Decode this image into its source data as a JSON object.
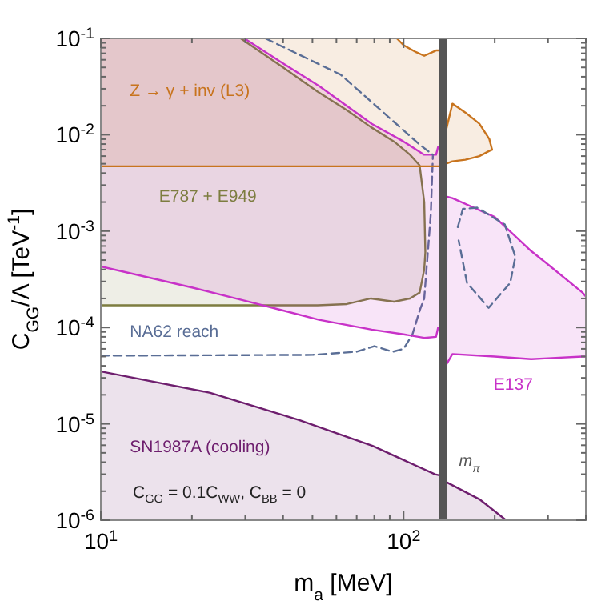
{
  "chart_data": {
    "type": "line",
    "xlabel": "m$_{a}$ [MeV]",
    "ylabel": "C$_{GG}$/Λ [TeV$^{-1}$]",
    "log": "xy",
    "xlim": [
      10,
      400
    ],
    "ylim": [
      1e-06,
      0.1
    ],
    "xticks": [
      {
        "value": 10,
        "label": "10$^{1}$"
      },
      {
        "value": 20,
        "label": null
      },
      {
        "value": 30,
        "label": null
      },
      {
        "value": 40,
        "label": null
      },
      {
        "value": 50,
        "label": null
      },
      {
        "value": 60,
        "label": null
      },
      {
        "value": 70,
        "label": null
      },
      {
        "value": 80,
        "label": null
      },
      {
        "value": 90,
        "label": null
      },
      {
        "value": 100,
        "label": "10$^{2}$"
      },
      {
        "value": 200,
        "label": null
      },
      {
        "value": 300,
        "label": null
      },
      {
        "value": 400,
        "label": null
      }
    ],
    "yticks": [
      {
        "value": 1e-06,
        "label": "10$^{-6}$"
      },
      {
        "value": 2e-06,
        "label": null
      },
      {
        "value": 3e-06,
        "label": null
      },
      {
        "value": 4e-06,
        "label": null
      },
      {
        "value": 5e-06,
        "label": null
      },
      {
        "value": 6e-06,
        "label": null
      },
      {
        "value": 7e-06,
        "label": null
      },
      {
        "value": 8e-06,
        "label": null
      },
      {
        "value": 9e-06,
        "label": null
      },
      {
        "value": 1e-05,
        "label": "10$^{-5}$"
      },
      {
        "value": 2e-05,
        "label": null
      },
      {
        "value": 3e-05,
        "label": null
      },
      {
        "value": 4e-05,
        "label": null
      },
      {
        "value": 5e-05,
        "label": null
      },
      {
        "value": 6e-05,
        "label": null
      },
      {
        "value": 7e-05,
        "label": null
      },
      {
        "value": 8e-05,
        "label": null
      },
      {
        "value": 9e-05,
        "label": null
      },
      {
        "value": 0.0001,
        "label": "10$^{-4}$"
      },
      {
        "value": 0.0002,
        "label": null
      },
      {
        "value": 0.0003,
        "label": null
      },
      {
        "value": 0.0004,
        "label": null
      },
      {
        "value": 0.0005,
        "label": null
      },
      {
        "value": 0.0006,
        "label": null
      },
      {
        "value": 0.0007,
        "label": null
      },
      {
        "value": 0.0008,
        "label": null
      },
      {
        "value": 0.0009,
        "label": null
      },
      {
        "value": 0.001,
        "label": "10$^{-3}$"
      },
      {
        "value": 0.002,
        "label": null
      },
      {
        "value": 0.003,
        "label": null
      },
      {
        "value": 0.004,
        "label": null
      },
      {
        "value": 0.005,
        "label": null
      },
      {
        "value": 0.006,
        "label": null
      },
      {
        "value": 0.007,
        "label": null
      },
      {
        "value": 0.008,
        "label": null
      },
      {
        "value": 0.009,
        "label": null
      },
      {
        "value": 0.01,
        "label": "10$^{-2}$"
      },
      {
        "value": 0.02,
        "label": null
      },
      {
        "value": 0.03,
        "label": null
      },
      {
        "value": 0.04,
        "label": null
      },
      {
        "value": 0.05,
        "label": null
      },
      {
        "value": 0.06,
        "label": null
      },
      {
        "value": 0.07,
        "label": null
      },
      {
        "value": 0.08,
        "label": null
      },
      {
        "value": 0.09,
        "label": null
      },
      {
        "value": 0.1,
        "label": "10$^{-1}$"
      }
    ],
    "series": [
      {
        "name": "Z → γ + inv (L3)",
        "color": "#c8741e",
        "x": [
          10,
          95,
          100,
          110,
          117,
          128,
          133,
          136,
          138,
          145,
          160,
          178,
          192,
          196
        ],
        "values": [
          null,
          0.1,
          0.085,
          0.072,
          0.066,
          0.075,
          0.075,
          null,
          0.011,
          0.021,
          0.017,
          0.013,
          0.009,
          0.007
        ],
        "upper": [
          0.1,
          0.1,
          0.085,
          0.072,
          0.066,
          0.075,
          0.075,
          null,
          0.011,
          0.021,
          0.017,
          0.013,
          0.009,
          0.007
        ],
        "lower": [
          0.0047,
          0.0047,
          0.0047,
          0.0047,
          0.0047,
          0.0047,
          0.0047,
          null,
          0.005,
          0.0053,
          0.0055,
          0.006,
          0.0068,
          0.007
        ]
      },
      {
        "name": "E787 + E949",
        "color": "#7d7d40",
        "x": [
          10,
          29,
          40,
          52,
          65,
          78,
          93,
          105,
          113,
          117,
          118,
          117,
          113,
          105,
          93,
          78,
          65,
          52,
          40,
          29
        ],
        "values": [
          0.00017,
          0.00017,
          0.00017,
          0.00017,
          0.000175,
          0.0002,
          0.000185,
          0.0002,
          0.00023,
          0.0004,
          0.0006,
          0.002,
          0.0048,
          0.0062,
          0.0085,
          0.012,
          0.018,
          0.028,
          0.05,
          0.1
        ]
      },
      {
        "color": "#7d7d40",
        "x": [
          10,
          29,
          40,
          52,
          65,
          78,
          93,
          105,
          113,
          117,
          118
        ],
        "values": [
          null,
          null,
          null,
          null,
          null,
          null,
          null,
          null,
          null,
          null,
          null
        ],
        "upper": [
          0.1,
          0.1,
          0.05,
          0.028,
          0.018,
          0.012,
          0.0085,
          0.0062,
          0.0048,
          0.002,
          0.0006
        ],
        "lower": [
          0.00017,
          0.00017,
          0.00017,
          0.00017,
          0.000175,
          0.0002,
          0.000185,
          0.0002,
          0.00023,
          0.0004,
          0.0006
        ]
      },
      {
        "name": "NA62 reach",
        "line_style": "dashed",
        "color": "#5a6e96",
        "x": [
          10,
          50,
          70,
          80,
          92,
          100,
          107,
          113,
          117,
          123,
          125
        ],
        "values": [
          5.1e-05,
          5.2e-05,
          5.6e-05,
          6.4e-05,
          5.6e-05,
          6e-05,
          8.5e-05,
          0.00015,
          0.0002,
          0.0015,
          0.0062
        ]
      },
      {
        "name": "E137",
        "color": "#c832c8",
        "x": [
          10,
          20,
          29.8,
          40,
          52.6,
          78.5,
          100,
          117,
          128,
          130,
          133,
          136,
          137,
          145,
          200,
          264,
          300,
          390,
          400
        ],
        "values": [
          null,
          null,
          0.1,
          0.055,
          0.032,
          0.013,
          0.0085,
          0.0062,
          0.0062,
          0.0075,
          0.0075,
          null,
          0.0023,
          0.0022,
          0.0014,
          0.00062,
          0.00045,
          0.00023,
          0.00021
        ],
        "upper": [
          0.1,
          0.1,
          0.1,
          0.055,
          0.032,
          0.013,
          0.0085,
          0.0062,
          0.0062,
          0.0075,
          0.0075,
          null,
          0.0023,
          0.0022,
          0.0014,
          0.00062,
          0.00045,
          0.00023,
          0.00021
        ],
        "lower": [
          0.00043,
          0.00026,
          0.00019,
          0.00015,
          0.00012,
          9.5e-05,
          8.5e-05,
          7.8e-05,
          8e-05,
          0.0001,
          0.0001,
          null,
          3.9e-05,
          5.3e-05,
          5e-05,
          4.7e-05,
          4.8e-05,
          5e-05,
          5e-05
        ]
      },
      {
        "name": "SN1987A (cooling)",
        "type": "area",
        "color": "#6e1e6e",
        "x": [
          10,
          23,
          45,
          79,
          127,
          133,
          138,
          178,
          218
        ],
        "values": [
          3.5e-05,
          2.1e-05,
          1.1e-05,
          5.9e-06,
          3e-06,
          2.9e-06,
          2.5e-06,
          1.65e-06,
          1e-06
        ]
      },
      {
        "color": "#c8741e",
        "x": [
          10,
          133,
          136,
          138,
          145,
          160,
          178,
          192,
          196
        ],
        "values": [
          0.0047,
          0.0047,
          null,
          0.005,
          0.0053,
          0.0055,
          0.006,
          0.0068,
          0.007
        ]
      },
      {
        "color": "#c832c8",
        "x": [
          10,
          20,
          29.8,
          40,
          52.6,
          78.5,
          100,
          117,
          128,
          130,
          133,
          136,
          137,
          145,
          200,
          264,
          300,
          390,
          400
        ],
        "values": [
          0.00043,
          0.00026,
          0.00019,
          0.00015,
          0.00012,
          9.5e-05,
          8.5e-05,
          7.8e-05,
          8e-05,
          0.0001,
          0.0001,
          null,
          3.9e-05,
          5.3e-05,
          5e-05,
          4.7e-05,
          4.8e-05,
          5e-05,
          5e-05
        ]
      },
      {
        "line_style": "dashed",
        "color": "#5a6e96",
        "x": [
          35,
          62,
          113,
          125
        ],
        "values": [
          0.1,
          0.042,
          0.0079,
          0.0062
        ]
      },
      {
        "line_style": "dashed",
        "color": "#5a6e96",
        "x": [
          151,
          157,
          175,
          216,
          234,
          225,
          191,
          162,
          152
        ],
        "values": [
          0.0011,
          0.0017,
          0.00175,
          0.00117,
          0.00054,
          0.00029,
          0.00016,
          0.00029,
          0.0008
        ]
      }
    ],
    "ref_lines": [
      {
        "axis": "x",
        "value": 135,
        "label": "m$_{π}$",
        "color": "#555555"
      }
    ],
    "annotations": [
      "C$_{GG}$ = 0.1C$_{WW}$, C$_{BB}$ = 0"
    ]
  }
}
